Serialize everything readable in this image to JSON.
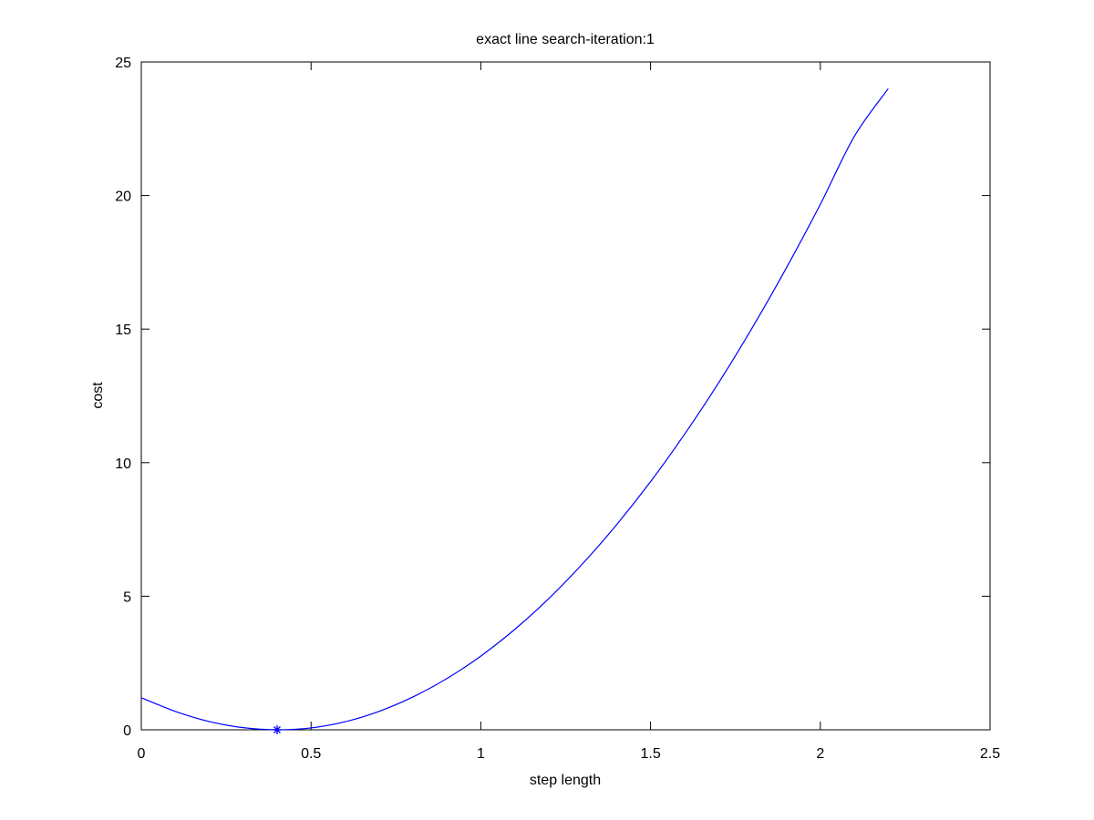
{
  "chart_data": {
    "type": "line",
    "title": "exact line search-iteration:1",
    "xlabel": "step length",
    "ylabel": "cost",
    "xlim": [
      0,
      2.5
    ],
    "ylim": [
      0,
      25
    ],
    "xticks": [
      "0",
      "0.5",
      "1",
      "1.5",
      "2",
      "2.5"
    ],
    "yticks": [
      "0",
      "5",
      "10",
      "15",
      "20",
      "25"
    ],
    "grid": false,
    "line_color": "#0000ff",
    "axis_color": "#000000",
    "series": [
      {
        "x": [
          0,
          0.1,
          0.2,
          0.3,
          0.4,
          0.5,
          0.6,
          0.7,
          0.8,
          0.9,
          1.0,
          1.1,
          1.2,
          1.3,
          1.4,
          1.5,
          1.6,
          1.7,
          1.8,
          1.9,
          2.0,
          2.1,
          2.2
        ],
        "values": [
          1.2,
          0.69,
          0.31,
          0.08,
          0.0,
          0.07,
          0.3,
          0.69,
          1.23,
          1.92,
          2.76,
          3.76,
          4.91,
          6.22,
          7.68,
          9.29,
          11.06,
          12.98,
          15.06,
          17.29,
          19.67,
          22.21,
          24.0
        ]
      }
    ],
    "marker": {
      "x": 0.4,
      "y": 0.0,
      "symbol": "*"
    }
  }
}
